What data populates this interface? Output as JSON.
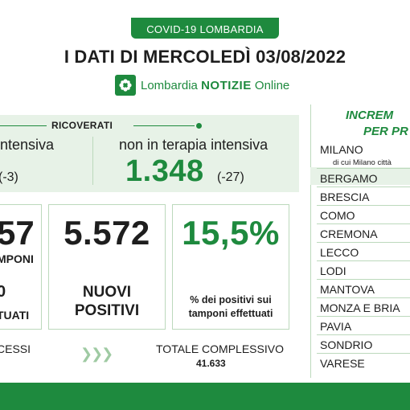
{
  "header": {
    "badge": "COVID-19 LOMBARDIA",
    "title": "I DATI DI MERCOLEDÌ 03/08/2022",
    "brand": {
      "lombardia": "Lombardia",
      "notizie": "NOTIZIE",
      "online": "Online"
    }
  },
  "ricoverati": {
    "label": "RICOVERATI",
    "terapia_intensiva_label": "intensiva",
    "terapia_intensiva_delta": "(-3)",
    "non_intensiva_label": "non in terapia intensiva",
    "non_intensiva_value": "1.348",
    "non_intensiva_delta": "(-27)"
  },
  "tamponi": {
    "value_partial": "57",
    "label_partial": "MPONI",
    "value2_partial": "0",
    "label2_partial": "TUATI"
  },
  "nuovi_positivi": {
    "value": "5.572",
    "label_line1": "NUOVI",
    "label_line2": "POSITIVI"
  },
  "percentuale": {
    "value": "15,5%",
    "label_line1": "% dei positivi sui",
    "label_line2": "tamponi effettuati"
  },
  "bottom": {
    "decessi_partial": "CESSI",
    "totale_label": "TOTALE COMPLESSIVO",
    "totale_value": "41.633"
  },
  "province_panel": {
    "title_line1": "INCREM",
    "title_line2": "PER PR",
    "milano_sub": "di cui Milano città",
    "items": [
      "MILANO",
      "BERGAMO",
      "BRESCIA",
      "COMO",
      "CREMONA",
      "LECCO",
      "LODI",
      "MANTOVA",
      "MONZA E BRIA",
      "PAVIA",
      "SONDRIO",
      "VARESE"
    ]
  },
  "colors": {
    "accent": "#1e8a3e",
    "light_green": "#e7f2e7",
    "border": "#bcd9bc"
  }
}
